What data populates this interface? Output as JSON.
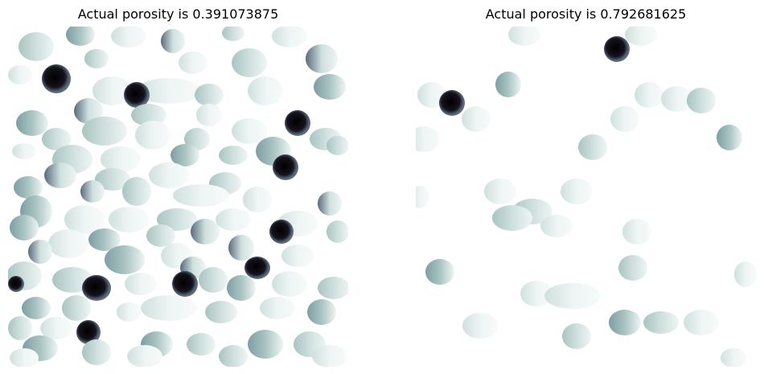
{
  "figure": {
    "panels": [
      {
        "title": "Actual porosity is 0.391073875",
        "porosity": 0.391073875
      },
      {
        "title": "Actual porosity is 0.792681625",
        "porosity": 0.792681625
      }
    ]
  },
  "colors": {
    "background": "#ffffff",
    "pale": "#eef5f4",
    "light": "#cfe0de",
    "mid": "#a9c4c2",
    "steel": "#7f9ea3",
    "slate": "#5a6a7d",
    "dark": "#15121c"
  }
}
